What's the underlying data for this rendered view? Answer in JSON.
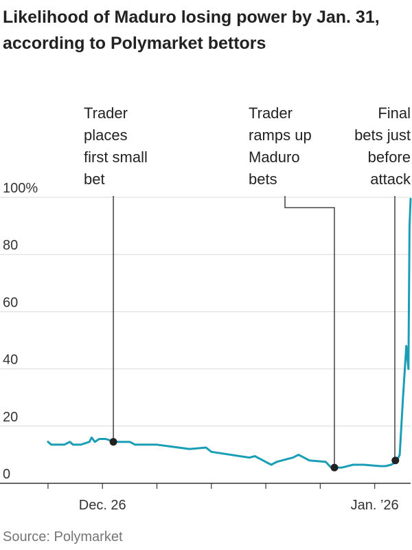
{
  "title_lines": [
    "Likelihood of Maduro losing power by Jan. 31,",
    "according to Polymarket bettors"
  ],
  "source": "Source: Polymarket",
  "colors": {
    "line": "#1a9eb5",
    "grid": "#d9d9d9",
    "annotation": "#222222",
    "axis": "#333333"
  },
  "chart_data": {
    "type": "line",
    "title": "Likelihood of Maduro losing power by Jan. 31, according to Polymarket bettors",
    "ylim": [
      0,
      100
    ],
    "yticks": [
      {
        "value": 100,
        "label": "100%"
      },
      {
        "value": 80,
        "label": "80"
      },
      {
        "value": 60,
        "label": "60"
      },
      {
        "value": 40,
        "label": "40"
      },
      {
        "value": 20,
        "label": "20"
      },
      {
        "value": 0,
        "label": "0"
      }
    ],
    "xlim": [
      -0.5,
      33.3
    ],
    "xticks": [
      {
        "value": 0,
        "label": ""
      },
      {
        "value": 5,
        "label": "Dec. 26"
      },
      {
        "value": 10,
        "label": ""
      },
      {
        "value": 15,
        "label": ""
      },
      {
        "value": 20,
        "label": ""
      },
      {
        "value": 25,
        "label": ""
      },
      {
        "value": 30,
        "label": "Jan. ’26"
      }
    ],
    "grid": true,
    "series": [
      {
        "x": [
          0,
          0.3,
          1.5,
          2,
          2.3,
          3,
          3.8,
          4,
          4.3,
          4.7,
          5,
          5.3,
          5.7,
          6,
          7.5,
          8,
          9,
          10,
          13,
          14.5,
          15,
          18.5,
          19,
          20.5,
          21,
          22,
          22.5,
          23,
          24,
          25.5,
          26,
          27,
          28,
          29,
          30.5,
          31,
          31.5,
          32,
          32.3,
          32.6,
          32.9,
          33.1,
          33.2,
          33.3
        ],
        "values": [
          14.5,
          13.5,
          13.5,
          14.5,
          13.5,
          13.5,
          14.5,
          16,
          14.5,
          15.5,
          15.5,
          15.5,
          15,
          14.5,
          14.5,
          13.5,
          13.5,
          13.5,
          12,
          12.5,
          11,
          9,
          9.5,
          6.5,
          7.5,
          8.5,
          9,
          10,
          8,
          7.5,
          5.5,
          5.5,
          6.5,
          6.5,
          6,
          6,
          6.5,
          7.5,
          10,
          30,
          48,
          40,
          90,
          99.5
        ]
      }
    ],
    "annotations": [
      {
        "lines": [
          "Trader",
          "places",
          "first small",
          "bet"
        ],
        "x": 6,
        "y": 14.5
      },
      {
        "lines": [
          "Trader",
          "ramps up",
          "Maduro",
          "bets"
        ],
        "x": 26,
        "y": 5.5
      },
      {
        "lines": [
          "Final",
          "bets just",
          "before",
          "attack"
        ],
        "x": 31.9,
        "y": 8
      }
    ]
  }
}
